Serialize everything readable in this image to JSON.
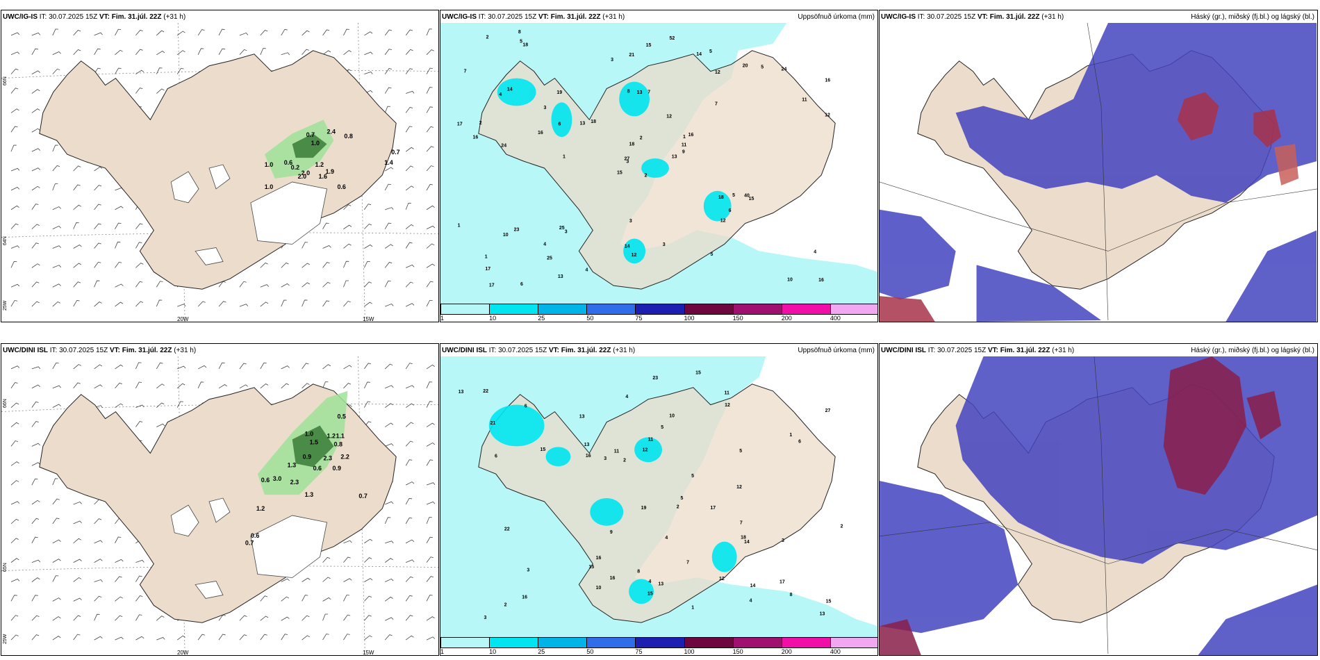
{
  "panels": {
    "top_wind": {
      "model": "UWC/IG-IS",
      "it_label": "IT:",
      "it_value": "30.07.2025 15Z",
      "vt_label": "VT:",
      "vt_value": "Fim. 31.júl. 22Z",
      "lead": "(+31 h)",
      "right_title": ""
    },
    "top_precip": {
      "model": "UWC/IG-IS",
      "it_label": "IT:",
      "it_value": "30.07.2025 15Z",
      "vt_label": "VT:",
      "vt_value": "Fim. 31.júl. 22Z",
      "lead": "(+31 h)",
      "right_title": "Uppsöfnuð úrkoma (mm)"
    },
    "top_cloud": {
      "model": "UWC/IG-IS",
      "it_label": "IT:",
      "it_value": "30.07.2025 15Z",
      "vt_label": "VT:",
      "vt_value": "Fim. 31.júl. 22Z",
      "lead": "(+31 h)",
      "right_title": "Háský (gr.), miðský (fj.bl.) og lágský (bl.)"
    },
    "bot_wind": {
      "model": "UWC/DINI ISL",
      "it_label": "IT:",
      "it_value": "30.07.2025 15Z",
      "vt_label": "VT:",
      "vt_value": "Fim. 31.júl. 22Z",
      "lead": "(+31 h)",
      "right_title": ""
    },
    "bot_precip": {
      "model": "UWC/DINI ISL",
      "it_label": "IT:",
      "it_value": "30.07.2025 15Z",
      "vt_label": "VT:",
      "vt_value": "Fim. 31.júl. 22Z",
      "lead": "(+31 h)",
      "right_title": "Uppsöfnuð úrkoma (mm)"
    },
    "bot_cloud": {
      "model": "UWC/DINI ISL",
      "it_label": "IT:",
      "it_value": "30.07.2025 15Z",
      "vt_label": "VT:",
      "vt_value": "Fim. 31.júl. 22Z",
      "lead": "(+31 h)",
      "right_title": "Háský (gr.), miðský (fj.bl.) og lágský (bl.)"
    }
  },
  "grid_labels": {
    "lon_20w": "20W",
    "lon_15w": "15W",
    "lat_66n": "66N",
    "lat_64n": "64N",
    "lat_25w": "25W",
    "lat_65n": "65N"
  },
  "colorbar": {
    "labels": [
      "1",
      "10",
      "25",
      "50",
      "75",
      "100",
      "150",
      "200",
      "400"
    ],
    "colors": [
      "#b8f7f7",
      "#00e5f0",
      "#00b4e8",
      "#2f6ee8",
      "#1d1fb0",
      "#6e0640",
      "#a0106e",
      "#f010a8",
      "#f2a8f0"
    ]
  },
  "wind_values": {
    "top": [
      {
        "v": "0.7"
      },
      {
        "v": "1.0"
      },
      {
        "v": "2.4"
      },
      {
        "v": "0.8"
      },
      {
        "v": "1.0"
      },
      {
        "v": "0.6"
      },
      {
        "v": "0.2"
      },
      {
        "v": "2.0"
      },
      {
        "v": "1.2"
      },
      {
        "v": "2.0"
      },
      {
        "v": "1.9"
      },
      {
        "v": "1.6"
      },
      {
        "v": "1.0"
      },
      {
        "v": "0.6"
      },
      {
        "v": "0.7"
      },
      {
        "v": "1.4"
      }
    ],
    "bottom": [
      {
        "v": "0.5"
      },
      {
        "v": "1.0"
      },
      {
        "v": "1.2"
      },
      {
        "v": "1.1"
      },
      {
        "v": "1.5"
      },
      {
        "v": "0.8"
      },
      {
        "v": "0.9"
      },
      {
        "v": "2.3"
      },
      {
        "v": "2.2"
      },
      {
        "v": "1.3"
      },
      {
        "v": "0.6"
      },
      {
        "v": "0.9"
      },
      {
        "v": "0.6"
      },
      {
        "v": "3.0"
      },
      {
        "v": "2.3"
      },
      {
        "v": "1.3"
      },
      {
        "v": "1.2"
      },
      {
        "v": "0.7"
      },
      {
        "v": "0.6"
      },
      {
        "v": "0.7"
      }
    ]
  },
  "precip_values": {
    "top": [
      "2",
      "4",
      "3",
      "1",
      "1",
      "3",
      "5",
      "7",
      "12",
      "13",
      "18",
      "16",
      "24",
      "16",
      "15",
      "7",
      "6",
      "8",
      "12",
      "23",
      "18",
      "17",
      "25",
      "13",
      "16",
      "15",
      "14",
      "21",
      "16",
      "18",
      "12",
      "27",
      "14",
      "18",
      "19",
      "20",
      "25",
      "10",
      "4",
      "40",
      "52",
      "13",
      "16",
      "12",
      "13",
      "17",
      "11",
      "17",
      "12",
      "9",
      "10",
      "11",
      "7",
      "6",
      "5",
      "4",
      "5",
      "2",
      "3",
      "24",
      "15",
      "1",
      "2",
      "3",
      "5",
      "8",
      "14",
      "3",
      "2",
      "1",
      "3",
      "4",
      "5",
      "6"
    ],
    "bottom": [
      "2",
      "3",
      "5",
      "4",
      "4",
      "15",
      "17",
      "11",
      "14",
      "15",
      "13",
      "16",
      "16",
      "23",
      "12",
      "13",
      "18",
      "22",
      "19",
      "27",
      "13",
      "16",
      "15",
      "17",
      "14",
      "12",
      "11",
      "5",
      "6",
      "7",
      "8",
      "9",
      "10",
      "3",
      "2",
      "1",
      "4",
      "5",
      "6",
      "8",
      "15",
      "16",
      "13",
      "10",
      "12",
      "3",
      "11",
      "13",
      "2",
      "15",
      "21",
      "12",
      "22",
      "4",
      "3",
      "6",
      "1",
      "2",
      "5",
      "7"
    ]
  }
}
